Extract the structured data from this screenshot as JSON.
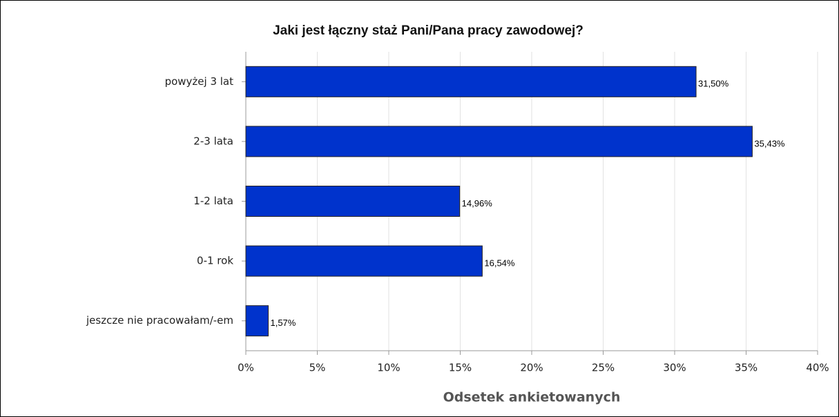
{
  "chart_data": {
    "type": "bar",
    "orientation": "horizontal",
    "title": "Jaki jest łączny staż Pani/Pana pracy zawodowej?",
    "x_label": "Odsetek ankietowanych",
    "categories": [
      "powyżej 3 lat",
      "2-3 lata",
      "1-2 lata",
      "0-1 rok",
      "jeszcze nie pracowałam/-em"
    ],
    "values": [
      31.5,
      35.43,
      14.96,
      16.54,
      1.57
    ],
    "value_labels": [
      "31,50%",
      "35,43%",
      "14,96%",
      "16,54%",
      "1,57%"
    ],
    "color": "#0033cc",
    "xlim": [
      0,
      40
    ],
    "xticks": [
      {
        "value": 0,
        "label": "0%"
      },
      {
        "value": 5,
        "label": "5%"
      },
      {
        "value": 10,
        "label": "10%"
      },
      {
        "value": 15,
        "label": "15%"
      },
      {
        "value": 20,
        "label": "20%"
      },
      {
        "value": 25,
        "label": "25%"
      },
      {
        "value": 30,
        "label": "30%"
      },
      {
        "value": 35,
        "label": "35%"
      },
      {
        "value": 40,
        "label": "40%"
      }
    ],
    "grid": true
  }
}
